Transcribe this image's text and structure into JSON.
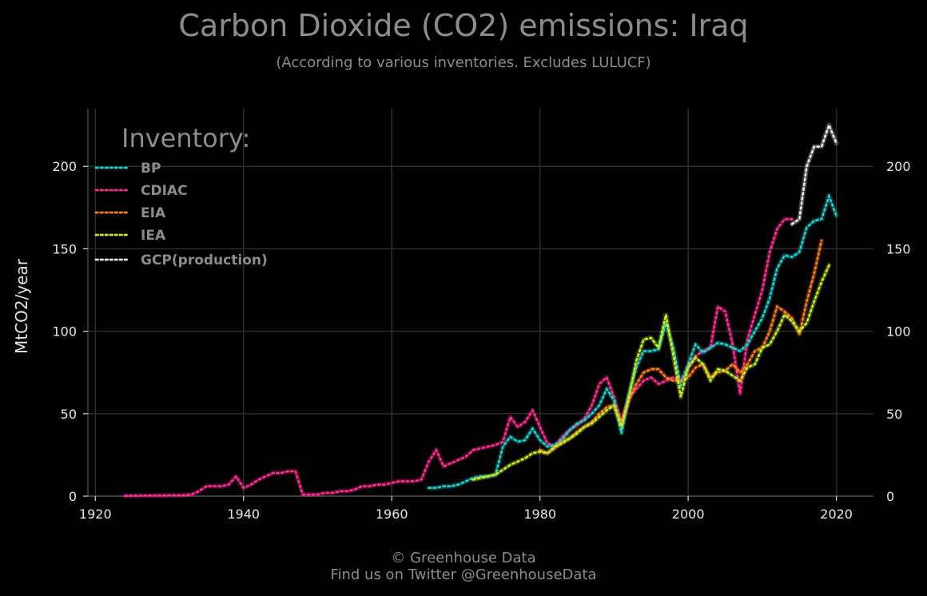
{
  "chart_data": {
    "type": "line",
    "title": "Carbon Dioxide (CO2) emissions: Iraq",
    "subtitle": "(According to various inventories. Excludes LULUCF)",
    "ylabel": "MtCO2/year",
    "xlim": [
      1919,
      2025
    ],
    "ylim": [
      0,
      235
    ],
    "x_ticks": [
      1920,
      1940,
      1960,
      1980,
      2000,
      2020
    ],
    "y_ticks": [
      0,
      50,
      100,
      150,
      200
    ],
    "grid": true,
    "legend_title": "Inventory:",
    "legend_position": "upper-left",
    "series": [
      {
        "name": "CDIAC",
        "color": "#ff2f92",
        "x": [
          1924,
          1925,
          1926,
          1927,
          1928,
          1929,
          1930,
          1931,
          1932,
          1933,
          1934,
          1935,
          1936,
          1937,
          1938,
          1939,
          1940,
          1941,
          1942,
          1943,
          1944,
          1945,
          1946,
          1947,
          1948,
          1949,
          1950,
          1951,
          1952,
          1953,
          1954,
          1955,
          1956,
          1957,
          1958,
          1959,
          1960,
          1961,
          1962,
          1963,
          1964,
          1965,
          1966,
          1967,
          1968,
          1969,
          1970,
          1971,
          1972,
          1973,
          1974,
          1975,
          1976,
          1977,
          1978,
          1979,
          1980,
          1981,
          1982,
          1983,
          1984,
          1985,
          1986,
          1987,
          1988,
          1989,
          1990,
          1991,
          1992,
          1993,
          1994,
          1995,
          1996,
          1997,
          1998,
          1999,
          2000,
          2001,
          2002,
          2003,
          2004,
          2005,
          2006,
          2007,
          2008,
          2009,
          2010,
          2011,
          2012,
          2013,
          2014
        ],
        "y": [
          0.2,
          0.2,
          0.3,
          0.3,
          0.4,
          0.4,
          0.5,
          0.5,
          0.6,
          1,
          3,
          6,
          6,
          6,
          7,
          12,
          5,
          7,
          10,
          12,
          14,
          14,
          15,
          15,
          1,
          1,
          1,
          2,
          2,
          3,
          3,
          4,
          6,
          6,
          7,
          7,
          8,
          9,
          9,
          9,
          10,
          21,
          28,
          18,
          20,
          22,
          24,
          28,
          29,
          30,
          31,
          33,
          48,
          42,
          45,
          52,
          42,
          32,
          30,
          36,
          40,
          43,
          47,
          55,
          68,
          72,
          60,
          44,
          60,
          65,
          70,
          72,
          68,
          70,
          72,
          70,
          78,
          85,
          88,
          90,
          115,
          112,
          92,
          62,
          95,
          110,
          125,
          148,
          162,
          168,
          168
        ]
      },
      {
        "name": "BP",
        "color": "#1fd1d1",
        "x": [
          1965,
          1966,
          1967,
          1968,
          1969,
          1970,
          1971,
          1972,
          1973,
          1974,
          1975,
          1976,
          1977,
          1978,
          1979,
          1980,
          1981,
          1982,
          1983,
          1984,
          1985,
          1986,
          1987,
          1988,
          1989,
          1990,
          1991,
          1992,
          1993,
          1994,
          1995,
          1996,
          1997,
          1998,
          1999,
          2000,
          2001,
          2002,
          2003,
          2004,
          2005,
          2006,
          2007,
          2008,
          2009,
          2010,
          2011,
          2012,
          2013,
          2014,
          2015,
          2016,
          2017,
          2018,
          2019,
          2020
        ],
        "y": [
          5,
          5,
          6,
          6,
          7,
          9,
          11,
          12,
          12,
          13,
          30,
          36,
          33,
          34,
          41,
          34,
          30,
          31,
          34,
          40,
          44,
          46,
          50,
          55,
          65,
          58,
          38,
          62,
          78,
          88,
          88,
          89,
          105,
          90,
          67,
          80,
          92,
          87,
          90,
          93,
          92,
          90,
          88,
          92,
          100,
          108,
          120,
          138,
          146,
          145,
          148,
          163,
          167,
          168,
          182,
          170
        ]
      },
      {
        "name": "EIA",
        "color": "#ff7f1f",
        "x": [
          1980,
          1981,
          1982,
          1983,
          1984,
          1985,
          1986,
          1987,
          1988,
          1989,
          1990,
          1991,
          1992,
          1993,
          1994,
          1995,
          1996,
          1997,
          1998,
          1999,
          2000,
          2001,
          2002,
          2003,
          2004,
          2005,
          2006,
          2007,
          2008,
          2009,
          2010,
          2011,
          2012,
          2013,
          2014,
          2015,
          2016,
          2017,
          2018
        ],
        "y": [
          28,
          26,
          29,
          33,
          35,
          39,
          42,
          45,
          50,
          54,
          55,
          45,
          58,
          68,
          75,
          77,
          77,
          72,
          70,
          70,
          72,
          78,
          80,
          72,
          75,
          76,
          80,
          75,
          80,
          88,
          90,
          100,
          115,
          112,
          108,
          98,
          118,
          135,
          155
        ]
      },
      {
        "name": "IEA",
        "color": "#c8f01f",
        "x": [
          1971,
          1972,
          1973,
          1974,
          1975,
          1976,
          1977,
          1978,
          1979,
          1980,
          1981,
          1982,
          1983,
          1984,
          1985,
          1986,
          1987,
          1988,
          1989,
          1990,
          1991,
          1992,
          1993,
          1994,
          1995,
          1996,
          1997,
          1998,
          1999,
          2000,
          2001,
          2002,
          2003,
          2004,
          2005,
          2006,
          2007,
          2008,
          2009,
          2010,
          2011,
          2012,
          2013,
          2014,
          2015,
          2016,
          2017,
          2018,
          2019
        ],
        "y": [
          10,
          11,
          12,
          13,
          16,
          19,
          21,
          23,
          26,
          27,
          26,
          30,
          32,
          35,
          38,
          42,
          44,
          48,
          52,
          55,
          42,
          60,
          82,
          95,
          96,
          90,
          110,
          85,
          60,
          78,
          84,
          80,
          70,
          77,
          76,
          73,
          70,
          78,
          80,
          90,
          92,
          100,
          110,
          106,
          100,
          105,
          118,
          130,
          140
        ]
      },
      {
        "name": "GCP(production)",
        "color": "#e8e8e8",
        "x": [
          2014,
          2015,
          2016,
          2017,
          2018,
          2019,
          2020
        ],
        "y": [
          165,
          168,
          200,
          212,
          212,
          225,
          214
        ]
      }
    ]
  },
  "footer": {
    "line1": "© Greenhouse Data",
    "line2": "Find us on Twitter @GreenhouseData"
  }
}
